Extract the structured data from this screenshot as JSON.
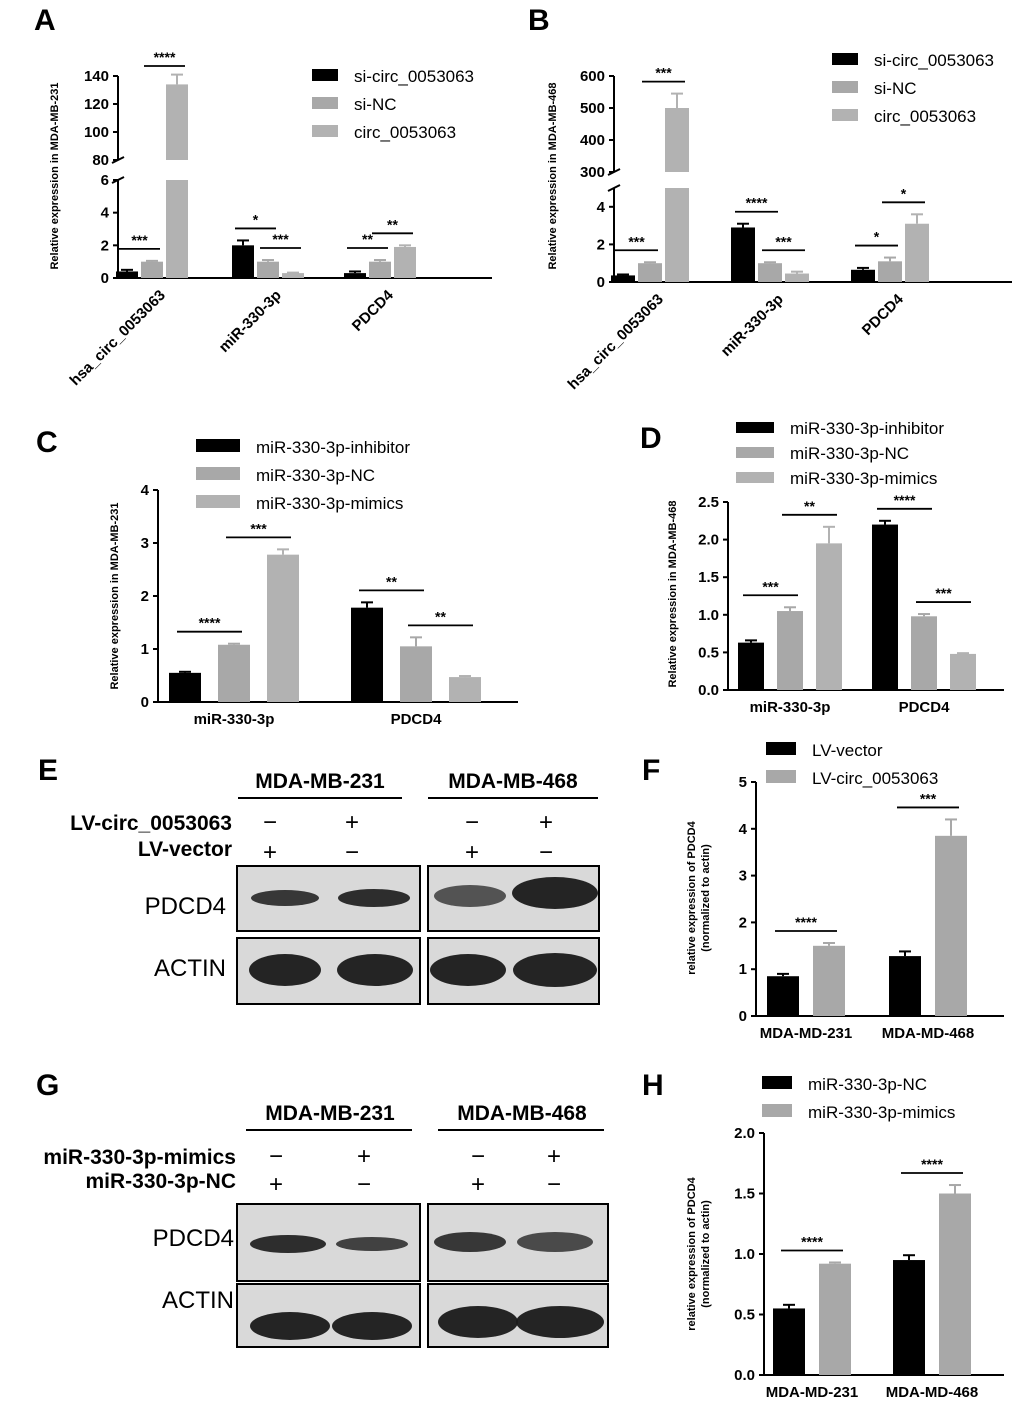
{
  "colors": {
    "black": "#000000",
    "nc": "#a8a8a8",
    "treat": "#b2b2b2",
    "band": "#1a1a1a",
    "membrane": "#d9d9d9"
  },
  "panels": [
    {
      "letter": "A"
    },
    {
      "letter": "B"
    },
    {
      "letter": "C"
    },
    {
      "letter": "D"
    },
    {
      "letter": "E"
    },
    {
      "letter": "F"
    },
    {
      "letter": "G"
    },
    {
      "letter": "H"
    }
  ],
  "chart_data": [
    {
      "panel": "A",
      "type": "bar",
      "ylabel": "Relative  expression in MDA-MB-231",
      "categories": [
        "hsa_circ_0053063",
        "miR-330-3p",
        "PDCD4"
      ],
      "series": [
        {
          "name": "si-circ_0053063",
          "values": [
            0.4,
            2.0,
            0.3
          ],
          "errors": [
            0.1,
            0.3,
            0.1
          ]
        },
        {
          "name": "si-NC",
          "values": [
            1.0,
            1.0,
            1.0
          ],
          "errors": [
            0.05,
            0.1,
            0.1
          ]
        },
        {
          "name": "circ_0053063",
          "values": [
            134,
            0.3,
            1.9
          ],
          "errors": [
            7,
            0.03,
            0.1
          ]
        }
      ],
      "ylim": [
        0,
        140
      ],
      "axis_break": [
        6,
        80
      ],
      "ticks_low": [
        0,
        2,
        4,
        6
      ],
      "ticks_high": [
        80,
        100,
        120,
        140
      ],
      "significance": [
        {
          "cat": 0,
          "from": 0,
          "to": 1,
          "label": "***"
        },
        {
          "cat": 0,
          "from": 1,
          "to": 2,
          "label": "****"
        },
        {
          "cat": 1,
          "from": 0,
          "to": 1,
          "label": "*"
        },
        {
          "cat": 1,
          "from": 1,
          "to": 2,
          "label": "***"
        },
        {
          "cat": 2,
          "from": 0,
          "to": 1,
          "label": "**"
        },
        {
          "cat": 2,
          "from": 1,
          "to": 2,
          "label": "**"
        }
      ]
    },
    {
      "panel": "B",
      "type": "bar",
      "ylabel": "Relative  expression in MDA-MB-468",
      "categories": [
        "hsa_circ_0053063",
        "miR-330-3p",
        "PDCD4"
      ],
      "series": [
        {
          "name": "si-circ_0053063",
          "values": [
            0.35,
            2.9,
            0.65
          ],
          "errors": [
            0.05,
            0.2,
            0.1
          ]
        },
        {
          "name": "si-NC",
          "values": [
            1.0,
            1.0,
            1.1
          ],
          "errors": [
            0.05,
            0.05,
            0.2
          ]
        },
        {
          "name": "circ_0053063",
          "values": [
            500,
            0.45,
            3.1
          ],
          "errors": [
            45,
            0.1,
            0.5
          ]
        }
      ],
      "ylim": [
        0,
        600
      ],
      "axis_break": [
        5,
        300
      ],
      "ticks_low": [
        0,
        2,
        4
      ],
      "ticks_high": [
        300,
        400,
        500,
        600
      ],
      "significance": [
        {
          "cat": 0,
          "from": 0,
          "to": 1,
          "label": "***"
        },
        {
          "cat": 0,
          "from": 1,
          "to": 2,
          "label": "***"
        },
        {
          "cat": 1,
          "from": 0,
          "to": 1,
          "label": "****"
        },
        {
          "cat": 1,
          "from": 1,
          "to": 2,
          "label": "***"
        },
        {
          "cat": 2,
          "from": 0,
          "to": 1,
          "label": "*"
        },
        {
          "cat": 2,
          "from": 1,
          "to": 2,
          "label": "*"
        }
      ]
    },
    {
      "panel": "C",
      "type": "bar",
      "ylabel": "Relative  expression in MDA-MB-231",
      "categories": [
        "miR-330-3p",
        "PDCD4"
      ],
      "series": [
        {
          "name": "miR-330-3p-inhibitor",
          "values": [
            0.55,
            1.78
          ],
          "errors": [
            0.02,
            0.1
          ]
        },
        {
          "name": "miR-330-3p-NC",
          "values": [
            1.08,
            1.05
          ],
          "errors": [
            0.02,
            0.17
          ]
        },
        {
          "name": "miR-330-3p-mimics",
          "values": [
            2.78,
            0.47
          ],
          "errors": [
            0.1,
            0.02
          ]
        }
      ],
      "ylim": [
        0,
        4
      ],
      "ticks": [
        0,
        1,
        2,
        3,
        4
      ],
      "significance": [
        {
          "cat": 0,
          "from": 0,
          "to": 1,
          "label": "****"
        },
        {
          "cat": 0,
          "from": 1,
          "to": 2,
          "label": "***"
        },
        {
          "cat": 1,
          "from": 0,
          "to": 1,
          "label": "**"
        },
        {
          "cat": 1,
          "from": 1,
          "to": 2,
          "label": "**"
        }
      ]
    },
    {
      "panel": "D",
      "type": "bar",
      "ylabel": "Relative expression in MDA-MB-468",
      "categories": [
        "miR-330-3p",
        "PDCD4"
      ],
      "series": [
        {
          "name": "miR-330-3p-inhibitor",
          "values": [
            0.63,
            2.2
          ],
          "errors": [
            0.03,
            0.05
          ]
        },
        {
          "name": "miR-330-3p-NC",
          "values": [
            1.05,
            0.98
          ],
          "errors": [
            0.05,
            0.03
          ]
        },
        {
          "name": "miR-330-3p-mimics",
          "values": [
            1.95,
            0.48
          ],
          "errors": [
            0.22,
            0.01
          ]
        }
      ],
      "ylim": [
        0,
        2.5
      ],
      "ticks": [
        "0.0",
        "0.5",
        "1.0",
        "1.5",
        "2.0",
        "2.5"
      ],
      "significance": [
        {
          "cat": 0,
          "from": 0,
          "to": 1,
          "label": "***"
        },
        {
          "cat": 0,
          "from": 1,
          "to": 2,
          "label": "**"
        },
        {
          "cat": 1,
          "from": 0,
          "to": 1,
          "label": "****"
        },
        {
          "cat": 1,
          "from": 1,
          "to": 2,
          "label": "***"
        }
      ]
    },
    {
      "panel": "F",
      "type": "bar",
      "ylabel": "relative expression of PDCD4",
      "ylabel2": "(normalized to actin)",
      "categories": [
        "MDA-MD-231",
        "MDA-MD-468"
      ],
      "series": [
        {
          "name": "LV-vector",
          "values": [
            0.85,
            1.28
          ],
          "errors": [
            0.05,
            0.1
          ]
        },
        {
          "name": "LV-circ_0053063",
          "values": [
            1.5,
            3.85
          ],
          "errors": [
            0.06,
            0.35
          ]
        }
      ],
      "ylim": [
        0,
        5
      ],
      "ticks": [
        0,
        1,
        2,
        3,
        4,
        5
      ],
      "significance": [
        {
          "cat": 0,
          "from": 0,
          "to": 1,
          "label": "****"
        },
        {
          "cat": 1,
          "from": 0,
          "to": 1,
          "label": "***"
        }
      ]
    },
    {
      "panel": "H",
      "type": "bar",
      "ylabel": "relative expression of PDCD4",
      "ylabel2": "(normalized to actin)",
      "categories": [
        "MDA-MD-231",
        "MDA-MD-468"
      ],
      "series": [
        {
          "name": "miR-330-3p-NC",
          "values": [
            0.55,
            0.95
          ],
          "errors": [
            0.03,
            0.04
          ]
        },
        {
          "name": "miR-330-3p-mimics",
          "values": [
            0.92,
            1.5
          ],
          "errors": [
            0.01,
            0.07
          ]
        }
      ],
      "ylim": [
        0,
        2
      ],
      "ticks": [
        "0.0",
        "0.5",
        "1.0",
        "1.5",
        "2.0"
      ],
      "significance": [
        {
          "cat": 0,
          "from": 0,
          "to": 1,
          "label": "****"
        },
        {
          "cat": 1,
          "from": 0,
          "to": 1,
          "label": "****"
        }
      ]
    }
  ],
  "blots": [
    {
      "panel": "E",
      "cell_lines": [
        "MDA-MB-231",
        "MDA-MB-468"
      ],
      "row1": {
        "label": "LV-circ_0053063",
        "signs": [
          "−",
          "+",
          "−",
          "+"
        ]
      },
      "row2": {
        "label": "LV-vector",
        "signs": [
          "+",
          "−",
          "+",
          "−"
        ]
      },
      "bands": [
        "PDCD4",
        "ACTIN"
      ]
    },
    {
      "panel": "G",
      "cell_lines": [
        "MDA-MB-231",
        "MDA-MB-468"
      ],
      "row1": {
        "label": "miR-330-3p-mimics",
        "signs": [
          "−",
          "+",
          "−",
          "+"
        ]
      },
      "row2": {
        "label": "miR-330-3p-NC",
        "signs": [
          "+",
          "−",
          "+",
          "−"
        ]
      },
      "bands": [
        "PDCD4",
        "ACTIN"
      ]
    }
  ]
}
